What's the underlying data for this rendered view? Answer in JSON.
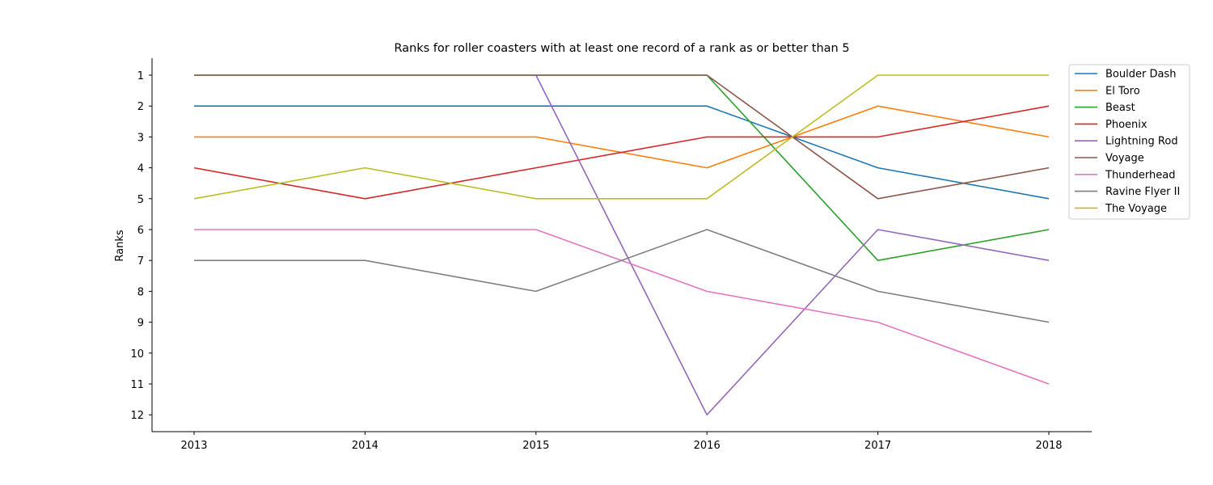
{
  "chart_data": {
    "type": "line",
    "title": "Ranks for roller coasters with at least one record of a rank as or better than 5",
    "xlabel": "",
    "ylabel": "Ranks",
    "x": [
      "2013",
      "2014",
      "2015",
      "2016",
      "2016.5",
      "2017",
      "2018"
    ],
    "x_tick_labels": [
      "2013",
      "2014",
      "2015",
      "2016",
      "2017",
      "2018"
    ],
    "y_ticks": [
      "1",
      "2",
      "3",
      "4",
      "5",
      "6",
      "7",
      "8",
      "9",
      "10",
      "11",
      "12"
    ],
    "ylim": [
      12.5,
      0.5
    ],
    "y_inverted": true,
    "grid": false,
    "legend_position": "outside-top-right",
    "series": [
      {
        "name": "Boulder Dash",
        "color": "#1f77b4",
        "points": [
          [
            2013,
            2
          ],
          [
            2014,
            2
          ],
          [
            2015,
            2
          ],
          [
            2016,
            2
          ],
          [
            2016.5,
            3
          ],
          [
            2017,
            4
          ],
          [
            2018,
            5
          ]
        ]
      },
      {
        "name": "El Toro",
        "color": "#ff7f0e",
        "points": [
          [
            2013,
            3
          ],
          [
            2014,
            3
          ],
          [
            2015,
            3
          ],
          [
            2016,
            4
          ],
          [
            2016.5,
            3
          ],
          [
            2017,
            2
          ],
          [
            2018,
            3
          ]
        ]
      },
      {
        "name": "Beast",
        "color": "#2ca02c",
        "points": [
          [
            2013,
            1
          ],
          [
            2014,
            1
          ],
          [
            2015,
            1
          ],
          [
            2016,
            1
          ],
          [
            2017,
            7
          ],
          [
            2018,
            6
          ]
        ]
      },
      {
        "name": "Phoenix",
        "color": "#d62728",
        "points": [
          [
            2013,
            4
          ],
          [
            2014,
            5
          ],
          [
            2015,
            4
          ],
          [
            2016,
            3
          ],
          [
            2016.5,
            3
          ],
          [
            2017,
            3
          ],
          [
            2018,
            2
          ]
        ]
      },
      {
        "name": "Lightning Rod",
        "color": "#9467bd",
        "points": [
          [
            2015,
            1
          ],
          [
            2016,
            12
          ],
          [
            2017,
            6
          ],
          [
            2018,
            7
          ]
        ]
      },
      {
        "name": "Voyage",
        "color": "#8c564b",
        "points": [
          [
            2013,
            1
          ],
          [
            2014,
            1
          ],
          [
            2015,
            1
          ],
          [
            2016,
            1
          ],
          [
            2016.5,
            3
          ],
          [
            2017,
            5
          ],
          [
            2018,
            4
          ]
        ]
      },
      {
        "name": "Thunderhead",
        "color": "#e377c2",
        "points": [
          [
            2013,
            6
          ],
          [
            2014,
            6
          ],
          [
            2015,
            6
          ],
          [
            2016,
            8
          ],
          [
            2017,
            9
          ],
          [
            2018,
            11
          ]
        ]
      },
      {
        "name": "Ravine Flyer II",
        "color": "#7f7f7f",
        "points": [
          [
            2013,
            7
          ],
          [
            2014,
            7
          ],
          [
            2015,
            8
          ],
          [
            2016,
            6
          ],
          [
            2017,
            8
          ],
          [
            2018,
            9
          ]
        ]
      },
      {
        "name": "The Voyage",
        "color": "#bcbd22",
        "points": [
          [
            2013,
            5
          ],
          [
            2014,
            4
          ],
          [
            2015,
            5
          ],
          [
            2016,
            5
          ],
          [
            2016.5,
            3
          ],
          [
            2017,
            1
          ],
          [
            2018,
            1
          ]
        ]
      }
    ]
  }
}
